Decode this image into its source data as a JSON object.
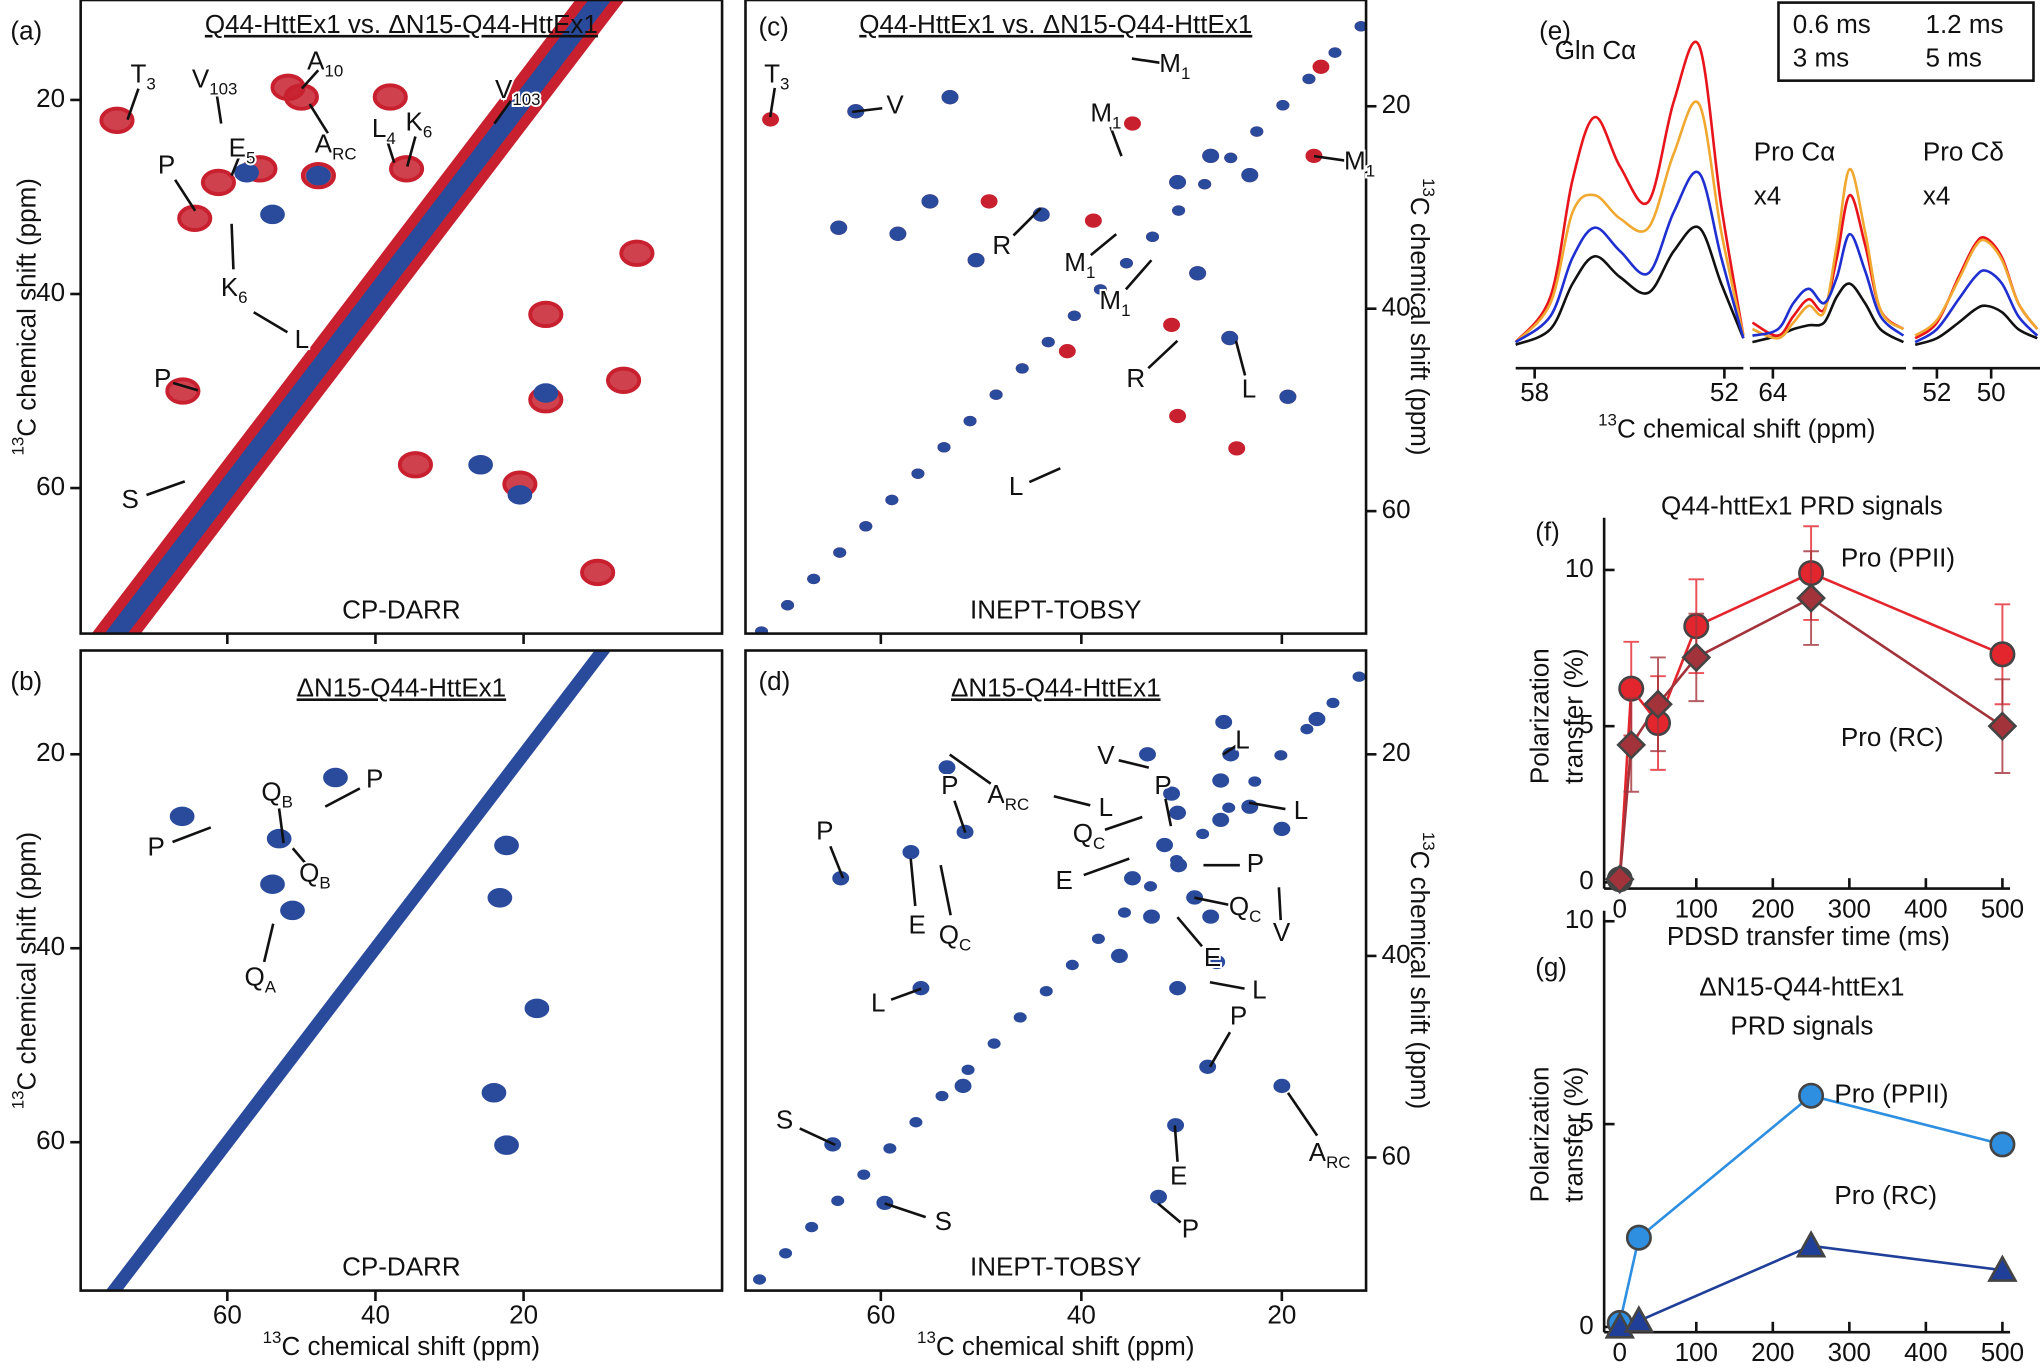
{
  "chart_data": [
    {
      "type": "contour",
      "panel_label": "(a)",
      "title": "Q44-HttEx1 vs. ΔN15-Q44-HttEx1",
      "subtitle": "CP-DARR",
      "xlim": [
        79.8,
        -6.8
      ],
      "ylim": [
        9.7,
        75.0
      ],
      "xticks": [
        60,
        40,
        20
      ],
      "yticks": [
        20,
        40,
        60
      ],
      "ylabel": {
        "sup": "13",
        "text": "C chemical shift (ppm)"
      },
      "yaxis_side": "left",
      "series": [
        {
          "color": "#c8202f",
          "x": [
            74.9,
            51.8,
            50,
            38,
            35.8,
            64.4,
            61.2,
            17,
            4.7,
            66,
            6.5,
            34.6,
            20.5,
            10,
            17,
            55.6,
            47.7
          ],
          "y": [
            22.1,
            18.7,
            19.7,
            19.7,
            27.1,
            32.2,
            28.5,
            42.1,
            35.8,
            50,
            48.9,
            57.6,
            59.6,
            68.7,
            50.9,
            27.1,
            27.8
          ]
        },
        {
          "color": "#2a4a9c",
          "x": [
            53.9,
            57.4,
            47.7,
            17,
            25.8,
            20.5
          ],
          "y": [
            31.8,
            27.5,
            27.8,
            50.2,
            57.6,
            60.7
          ]
        }
      ],
      "annotations": [
        {
          "text": "T",
          "sub": "3"
        },
        {
          "text": "V",
          "sub": "103"
        },
        {
          "text": "A",
          "sub": "10"
        },
        {
          "text": "A",
          "sub": "RC"
        },
        {
          "text": "L",
          "sub": "4"
        },
        {
          "text": "K",
          "sub": "6"
        },
        {
          "text": "V",
          "sub": "103"
        },
        {
          "text": "E",
          "sub": "5"
        },
        {
          "text": "P"
        },
        {
          "text": "K",
          "sub": "6"
        },
        {
          "text": "L"
        },
        {
          "text": "P"
        },
        {
          "text": "S"
        }
      ]
    },
    {
      "type": "contour",
      "panel_label": "(b)",
      "title": "ΔN15-Q44-HttEx1",
      "subtitle": "CP-DARR",
      "xlim": [
        79.8,
        -6.8
      ],
      "ylim": [
        9.3,
        75.3
      ],
      "xticks": [
        60,
        40,
        20
      ],
      "yticks": [
        20,
        40,
        60
      ],
      "xlabel": {
        "sup": "13",
        "text": "C chemical shift (ppm)"
      },
      "ylabel": {
        "sup": "13",
        "text": "C chemical shift (ppm)"
      },
      "yaxis_side": "left",
      "series": [
        {
          "color": "#2a4a9c",
          "x": [
            66.1,
            53,
            53.9,
            45.4,
            22.3,
            23.2,
            24,
            18.2,
            22.3,
            51.2
          ],
          "y": [
            26.4,
            28.7,
            33.4,
            22.4,
            29.4,
            34.8,
            54.9,
            46.2,
            60.3,
            36.1
          ]
        }
      ],
      "annotations": [
        {
          "text": "P"
        },
        {
          "text": "Q",
          "sub": "B"
        },
        {
          "text": "P"
        },
        {
          "text": "Q",
          "sub": "B"
        },
        {
          "text": "Q",
          "sub": "A"
        }
      ]
    },
    {
      "type": "contour",
      "panel_label": "(c)",
      "title": "Q44-HttEx1 vs. ΔN15-Q44-HttEx1",
      "subtitle": "INEPT-TOBSY",
      "xlim": [
        73.5,
        11.6
      ],
      "ylim": [
        9.5,
        72.1
      ],
      "xticks": [
        60,
        40,
        20
      ],
      "yticks": [
        20,
        40,
        60
      ],
      "ylabel": {
        "sup": "13",
        "text": "C chemical shift (ppm)"
      },
      "yaxis_side": "right",
      "series": [
        {
          "color": "#c8202f",
          "x": [
            71.0,
            62.5,
            53.1,
            64.2,
            58.3,
            55.1,
            49.2,
            50.5,
            44.0,
            38.8,
            34.9,
            30.4,
            27.1,
            23.2,
            16.1,
            16.8,
            28.4,
            31.0,
            25.2,
            19.4,
            41.4,
            30.4,
            24.5
          ],
          "y": [
            21.3,
            20.5,
            19.1,
            32.0,
            32.6,
            29.4,
            29.4,
            35.2,
            30.7,
            31.3,
            21.7,
            27.5,
            24.9,
            26.8,
            16.1,
            24.9,
            36.5,
            41.6,
            42.9,
            48.7,
            44.2,
            50.6,
            53.8
          ]
        },
        {
          "color": "#2a4a9c",
          "x": [
            62.5,
            53.1,
            64.2,
            58.3,
            55.1,
            50.5,
            44.0,
            30.4,
            27.1,
            23.2,
            28.4,
            25.2,
            19.4
          ],
          "y": [
            20.5,
            19.1,
            32.0,
            32.6,
            29.4,
            35.2,
            30.7,
            27.5,
            24.9,
            26.8,
            36.5,
            42.9,
            48.7
          ]
        }
      ],
      "annotations": [
        {
          "text": "T",
          "sub": "3"
        },
        {
          "text": "V"
        },
        {
          "text": "M",
          "sub": "1"
        },
        {
          "text": "M",
          "sub": "1"
        },
        {
          "text": "M",
          "sub": "1"
        },
        {
          "text": "R"
        },
        {
          "text": "M",
          "sub": "1"
        },
        {
          "text": "M",
          "sub": "1"
        },
        {
          "text": "R"
        },
        {
          "text": "L"
        },
        {
          "text": "L"
        }
      ]
    },
    {
      "type": "contour",
      "panel_label": "(d)",
      "title": "ΔN15-Q44-HttEx1",
      "subtitle": "INEPT-TOBSY",
      "xlim": [
        73.5,
        11.6
      ],
      "ylim": [
        9.7,
        73.2
      ],
      "xticks": [
        60,
        40,
        20
      ],
      "yticks": [
        20,
        40,
        60
      ],
      "xlabel": {
        "sup": "13",
        "text": "C chemical shift (ppm)"
      },
      "ylabel": {
        "sup": "13",
        "text": "C chemical shift (ppm)"
      },
      "yaxis_side": "right",
      "series": [
        {
          "color": "#2a4a9c",
          "x": [
            25.8,
            16.5,
            25.1,
            26.1,
            26.1,
            23.2,
            30.4,
            33.4,
            31.0,
            31.7,
            30.3,
            34.9,
            28.7,
            33.0,
            27.1,
            36.2,
            26.5,
            30.4,
            20.0,
            20.0,
            27.4,
            51.6,
            57.0,
            64.0,
            56.0,
            51.8,
            30.6,
            32.3,
            64.8,
            59.6,
            53.4
          ],
          "y": [
            16.8,
            16.5,
            20,
            22.6,
            26.5,
            25.2,
            25.8,
            20,
            23.9,
            29.0,
            31.0,
            32.3,
            34.2,
            36.1,
            36.1,
            40.0,
            40.6,
            43.2,
            27.4,
            52.9,
            51.0,
            27.7,
            29.7,
            32.3,
            43.2,
            52.9,
            56.8,
            63.9,
            58.7,
            64.5,
            21.3
          ]
        }
      ],
      "annotations": [
        {
          "text": "V"
        },
        {
          "text": "L"
        },
        {
          "text": "P"
        },
        {
          "text": "A",
          "sub": "RC"
        },
        {
          "text": "L"
        },
        {
          "text": "P"
        },
        {
          "text": "L"
        },
        {
          "text": "Q",
          "sub": "C"
        },
        {
          "text": "P"
        },
        {
          "text": "E"
        },
        {
          "text": "P"
        },
        {
          "text": "E"
        },
        {
          "text": "Q",
          "sub": "C"
        },
        {
          "text": "Q",
          "sub": "C"
        },
        {
          "text": "V"
        },
        {
          "text": "E"
        },
        {
          "text": "L"
        },
        {
          "text": "L"
        },
        {
          "text": "P"
        },
        {
          "text": "S"
        },
        {
          "text": "A",
          "sub": "RC"
        },
        {
          "text": "E"
        },
        {
          "text": "S"
        },
        {
          "text": "P"
        }
      ]
    },
    {
      "type": "spectrum",
      "panel_label": "(e)",
      "xlabel": {
        "sup": "13",
        "text": "C chemical shift (ppm)"
      },
      "legend_corner": "top-right",
      "ylim": [
        0,
        240
      ],
      "series": [
        {
          "name": "0.6 ms",
          "color": "#111111"
        },
        {
          "name": "1.2 ms",
          "color": "#e8141c"
        },
        {
          "name": "3 ms",
          "color": "#f0a830"
        },
        {
          "name": "5 ms",
          "color": "#1f2fd0"
        }
      ],
      "subpanels": [
        {
          "label": [
            "Gln Cα"
          ],
          "xlim": [
            58.6,
            51.4
          ],
          "xticks": [
            58,
            52
          ],
          "x": [
            58.6,
            57.5,
            56.8,
            56.1,
            55.3,
            54.4,
            53.6,
            52.8,
            52.1,
            51.4
          ],
          "values": [
            [
              3,
              15,
              50,
              71,
              55,
              43,
              75,
              93,
              50,
              8
            ],
            [
              5,
              40,
              130,
              178,
              140,
              113,
              190,
              233,
              110,
              10
            ],
            [
              5,
              35,
              105,
              118,
              100,
              93,
              150,
              188,
              90,
              10
            ],
            [
              5,
              25,
              70,
              93,
              75,
              58,
              105,
              135,
              70,
              8
            ]
          ]
        },
        {
          "label": [
            "Pro Cα",
            "x4"
          ],
          "xlim": [
            64.9,
            58.8
          ],
          "xticks": [
            64
          ],
          "x": [
            64.8,
            63.8,
            63.2,
            62.6,
            62.0,
            61.5,
            61.0,
            60.4,
            59.8,
            58.9
          ],
          "values": [
            [
              5,
              10,
              15,
              18,
              20,
              40,
              50,
              35,
              15,
              5
            ],
            [
              20,
              10,
              25,
              38,
              30,
              70,
              118,
              80,
              30,
              15
            ],
            [
              15,
              8,
              20,
              33,
              28,
              80,
              138,
              90,
              30,
              15
            ],
            [
              10,
              15,
              35,
              46,
              35,
              55,
              88,
              60,
              25,
              10
            ]
          ]
        },
        {
          "label": [
            "Pro Cδ",
            "x4"
          ],
          "xlim": [
            52.9,
            48.2
          ],
          "xticks": [
            52,
            50
          ],
          "x": [
            52.8,
            52,
            51.2,
            50.6,
            50.2,
            49.6,
            49,
            48.3
          ],
          "values": [
            [
              3,
              8,
              20,
              30,
              33,
              28,
              15,
              8
            ],
            [
              8,
              20,
              55,
              80,
              85,
              70,
              35,
              15
            ],
            [
              10,
              22,
              53,
              78,
              83,
              68,
              35,
              15
            ],
            [
              5,
              15,
              38,
              55,
              60,
              50,
              25,
              10
            ]
          ]
        }
      ]
    },
    {
      "type": "line",
      "panel_label": "(f)",
      "title": [
        "Q44-httEx1 PRD signals"
      ],
      "xlabel": "PDSD transfer time (ms)",
      "ylabel": [
        "Polarization",
        "transfer (%)"
      ],
      "xlim": [
        -20.4,
        510
      ],
      "ylim": [
        -0.2,
        11.67
      ],
      "xticks": [
        0,
        100,
        200,
        300,
        400,
        500
      ],
      "yticks": [
        0,
        5,
        10
      ],
      "series": [
        {
          "name": "Pro (PPII)",
          "color": "#e3262e",
          "marker": "circle",
          "x": [
            0,
            15,
            50,
            100,
            250,
            500
          ],
          "values": [
            0.1,
            6.2,
            5.1,
            8.2,
            9.9,
            7.3
          ],
          "errors": [
            0.3,
            1.5,
            1.5,
            1.5,
            1.5,
            1.6
          ]
        },
        {
          "name": "Pro (RC)",
          "color": "#a2333b",
          "marker": "diamond",
          "x": [
            0,
            15,
            50,
            100,
            250,
            500
          ],
          "values": [
            0.1,
            4.4,
            5.7,
            7.2,
            9.1,
            5.0
          ],
          "errors": [
            0.2,
            1.5,
            1.5,
            1.4,
            1.5,
            1.5
          ]
        }
      ]
    },
    {
      "type": "line",
      "panel_label": "(g)",
      "title": [
        "ΔN15-Q44-httEx1",
        "PRD signals"
      ],
      "xlabel": "PDSD transfer time (ms)",
      "ylabel": [
        "Polarization",
        "transfer (%)"
      ],
      "xlim": [
        -20.4,
        510
      ],
      "ylim": [
        -0.13,
        10.26
      ],
      "xticks": [
        0,
        100,
        200,
        300,
        400,
        500
      ],
      "yticks": [
        0,
        5,
        10
      ],
      "series": [
        {
          "name": "Pro (PPII)",
          "color": "#2e8fe0",
          "marker": "circle",
          "x": [
            0,
            25,
            250,
            500
          ],
          "values": [
            0.1,
            2.2,
            5.7,
            4.5
          ]
        },
        {
          "name": "Pro (RC)",
          "color": "#1f3f99",
          "marker": "triangle",
          "x": [
            0,
            25,
            250,
            500
          ],
          "values": [
            0.0,
            0.15,
            2.0,
            1.4
          ]
        }
      ]
    }
  ]
}
